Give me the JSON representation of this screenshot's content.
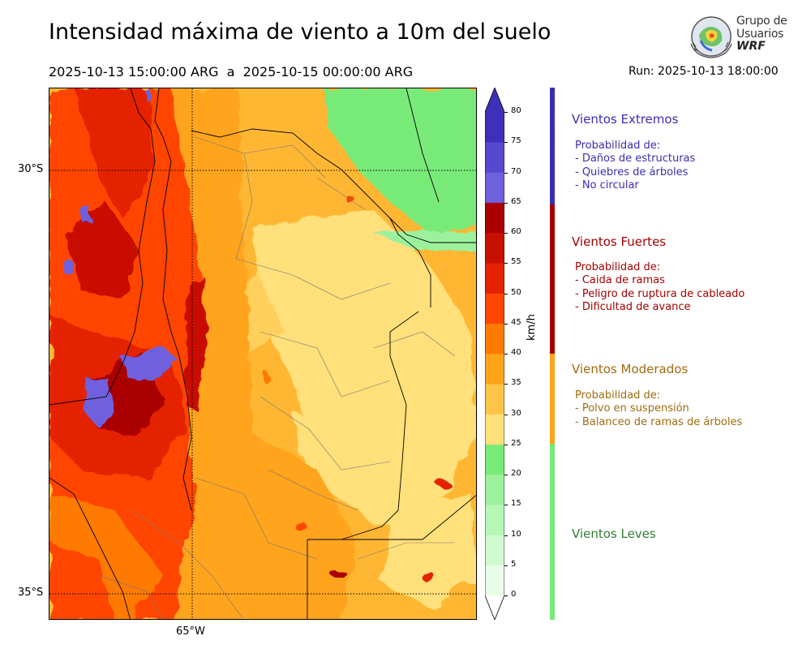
{
  "header": {
    "title": "Intensidad máxima de viento a 10m del suelo",
    "date_range": "2025-10-13 15:00:00 ARG  a  2025-10-15 00:00:00 ARG",
    "run": "Run: 2025-10-13 18:00:00"
  },
  "logo": {
    "line1": "Grupo de",
    "line2": "Usuarios",
    "line3": "WRF"
  },
  "map": {
    "lat_labels": [
      "30°S",
      "35°S"
    ],
    "lon_labels": [
      "65°W"
    ]
  },
  "colorbar": {
    "units": "km/h",
    "ticks": [
      "0",
      "5",
      "10",
      "15",
      "20",
      "25",
      "30",
      "35",
      "40",
      "45",
      "50",
      "55",
      "60",
      "65",
      "70",
      "75",
      "80"
    ],
    "colors": [
      "#e8fde8",
      "#d0fbd0",
      "#b6f7b6",
      "#9cf19c",
      "#78ea78",
      "#ffe07a",
      "#ffc447",
      "#ffa41a",
      "#ff7a00",
      "#ff4500",
      "#e52200",
      "#c81000",
      "#aa0000",
      "#6f60dd",
      "#5648cf",
      "#3e30b8"
    ]
  },
  "categories": [
    {
      "title": "Vientos Extremos",
      "color": "#3a2db0",
      "desc": [
        "Probabilidad de:",
        "- Daños de estructuras",
        "- Quiebres de árboles",
        "- No circular"
      ]
    },
    {
      "title": "Vientos Fuertes",
      "color": "#a40000",
      "desc": [
        "Probabilidad de:",
        "- Caida de ramas",
        "- Peligro de ruptura de cableado",
        "- Dificultad de avance"
      ]
    },
    {
      "title": "Vientos Moderados",
      "color": "#a06a10",
      "desc": [
        "Probabilidad de:",
        "- Polvo en suspensión",
        "- Balanceo de ramas de árboles"
      ]
    },
    {
      "title": "Vientos Leves",
      "color": "#2e7d32",
      "desc": []
    }
  ]
}
